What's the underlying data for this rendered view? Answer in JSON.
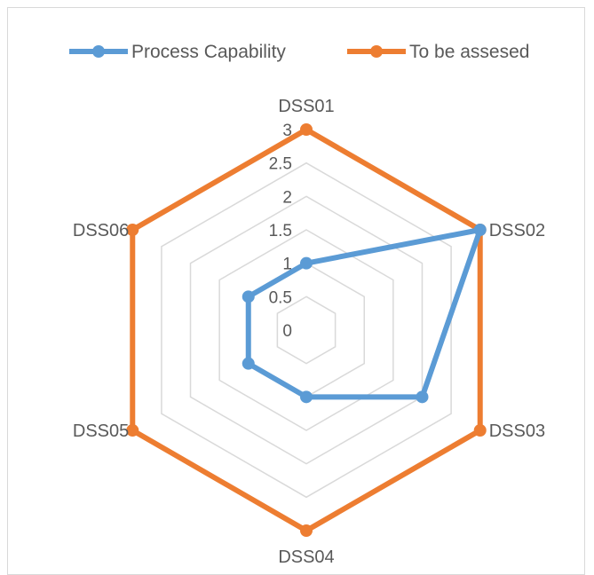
{
  "chart_data": {
    "type": "radar",
    "categories": [
      "DSS01",
      "DSS02",
      "DSS03",
      "DSS04",
      "DSS05",
      "DSS06"
    ],
    "series": [
      {
        "name": "Process Capability",
        "values": [
          1,
          3,
          2,
          1,
          1,
          1
        ],
        "color": "#5b9bd5"
      },
      {
        "name": "To be assesed",
        "values": [
          3,
          3,
          3,
          3,
          3,
          3
        ],
        "color": "#ed7d31"
      }
    ],
    "rlim": [
      0,
      3
    ],
    "ticks": [
      "0",
      "0.5",
      "1",
      "1.5",
      "2",
      "2.5",
      "3"
    ],
    "legend_position": "top",
    "grid": true,
    "grid_color": "#d9d9d9"
  }
}
